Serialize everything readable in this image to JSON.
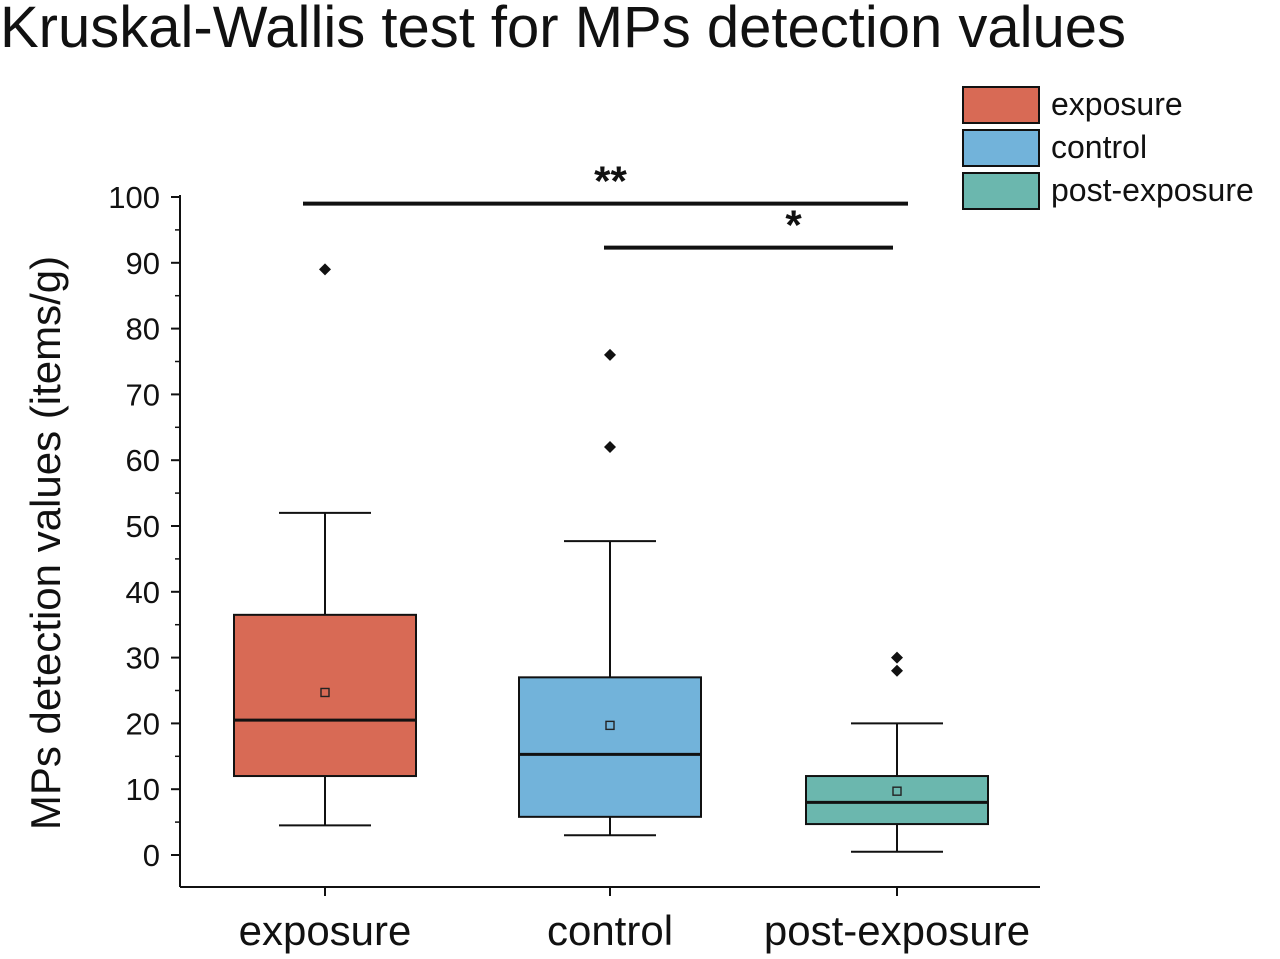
{
  "chart_data": {
    "type": "box",
    "title": "Kruskal-Wallis test for MPs detection values",
    "xlabel": "",
    "ylabel": "MPs detection values (items/g)",
    "ylim": [
      -5,
      100
    ],
    "yticks": [
      0,
      10,
      20,
      30,
      40,
      50,
      60,
      70,
      80,
      90,
      100
    ],
    "categories": [
      "exposure",
      "control",
      "post-exposure"
    ],
    "series": [
      {
        "name": "exposure",
        "color": "#d86a55",
        "whisker_low": 4.5,
        "q1": 12,
        "median": 20.5,
        "q3": 36.5,
        "whisker_high": 52,
        "mean": 24.7,
        "outliers": [
          89
        ]
      },
      {
        "name": "control",
        "color": "#72b3da",
        "whisker_low": 3,
        "q1": 5.8,
        "median": 15.3,
        "q3": 27,
        "whisker_high": 47.7,
        "mean": 19.7,
        "outliers": [
          62,
          76
        ]
      },
      {
        "name": "post-exposure",
        "color": "#6bb7ae",
        "whisker_low": 0.5,
        "q1": 4.7,
        "median": 8,
        "q3": 12,
        "whisker_high": 20,
        "mean": 9.7,
        "outliers": [
          28,
          30
        ]
      }
    ],
    "significance": [
      {
        "from": "exposure",
        "to": "post-exposure",
        "y": 99,
        "label": "**"
      },
      {
        "from": "control",
        "to": "post-exposure",
        "y": 92.3,
        "label": "*"
      }
    ],
    "legend": {
      "position": "top-right",
      "entries": [
        "exposure",
        "control",
        "post-exposure"
      ]
    },
    "grid": false
  }
}
